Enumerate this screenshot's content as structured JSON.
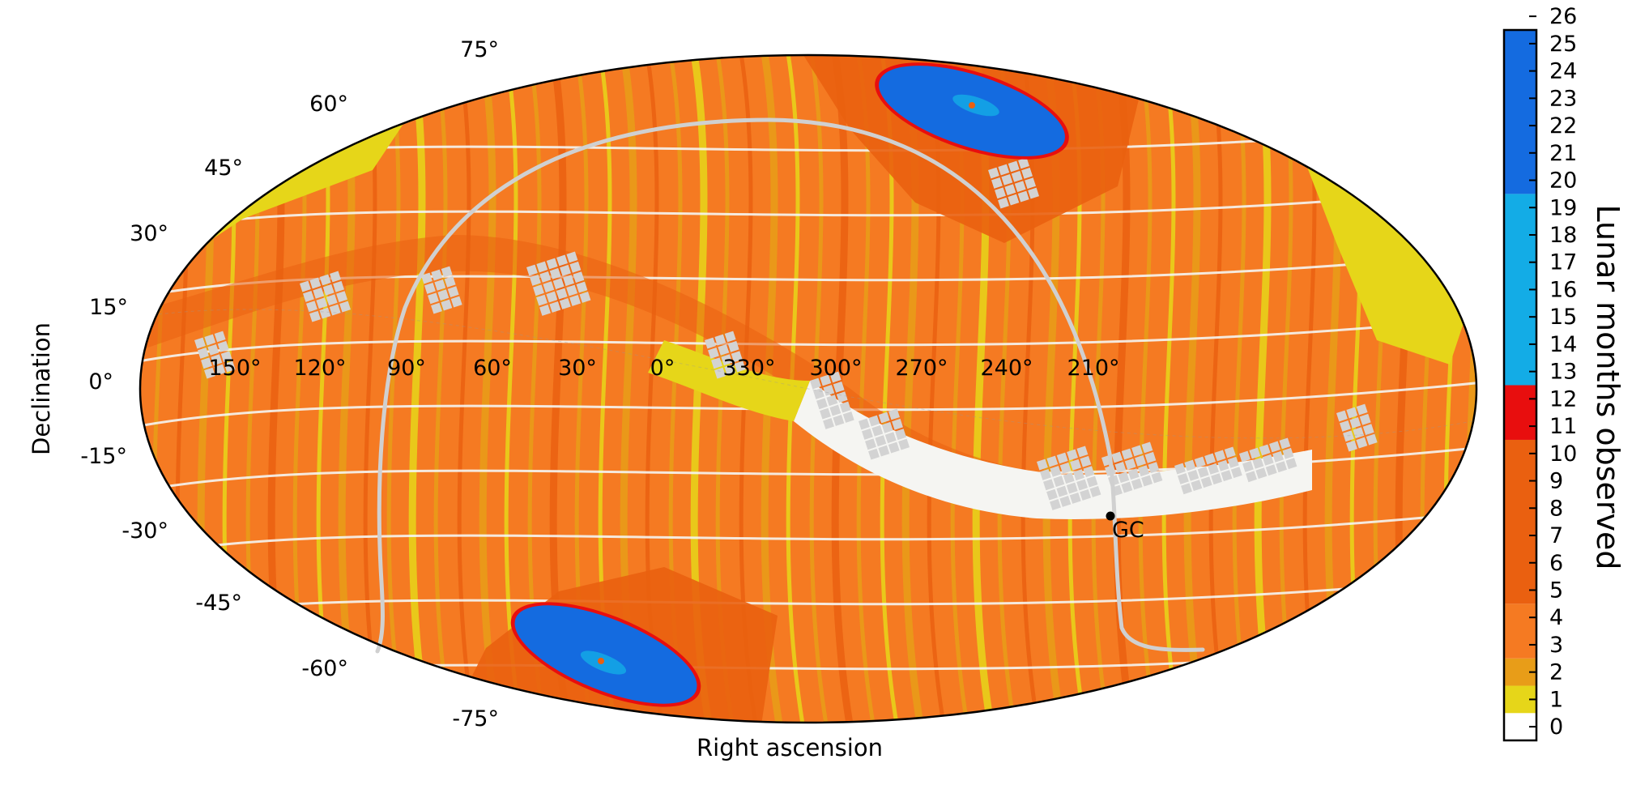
{
  "chart_data": {
    "type": "heatmap",
    "projection": "mollweide",
    "xlabel": "Right ascension",
    "ylabel": "Declination",
    "ra_ticks": [
      "150°",
      "120°",
      "90°",
      "60°",
      "30°",
      "0°",
      "330°",
      "300°",
      "270°",
      "240°",
      "210°"
    ],
    "dec_ticks": [
      "75°",
      "60°",
      "45°",
      "30°",
      "15°",
      "0°",
      "-15°",
      "-30°",
      "-45°",
      "-60°",
      "-75°"
    ],
    "annotation": "GC",
    "grid": true,
    "colorbar": {
      "label": "Lunar months observed",
      "ticks": [
        "0",
        "1",
        "2",
        "3",
        "4",
        "5",
        "6",
        "7",
        "8",
        "9",
        "10",
        "11",
        "12",
        "13",
        "14",
        "15",
        "16",
        "17",
        "18",
        "19",
        "20",
        "21",
        "22",
        "23",
        "24",
        "25",
        "26"
      ],
      "min": 0,
      "max": 26,
      "bands": [
        {
          "from": 0,
          "to": 1,
          "color": "#ffffff"
        },
        {
          "from": 1,
          "to": 2,
          "color": "#e6d619"
        },
        {
          "from": 2,
          "to": 3,
          "color": "#e89d18"
        },
        {
          "from": 3,
          "to": 5,
          "color": "#f57a22"
        },
        {
          "from": 5,
          "to": 11,
          "color": "#ea6010"
        },
        {
          "from": 11,
          "to": 13,
          "color": "#e80e0e"
        },
        {
          "from": 13,
          "to": 20,
          "color": "#13ace6"
        },
        {
          "from": 20,
          "to": 26,
          "color": "#146be0"
        }
      ]
    },
    "colors": {
      "low_coverage": "#e6d619",
      "mid_coverage": "#e89d18",
      "main_coverage": "#f57a22",
      "high_coverage": "#ea6010",
      "ecliptic_band": "#f5f5f2",
      "pole_light": "#13ace6",
      "pole_dark": "#146be0",
      "galactic_plane_line": "#d0d0d0",
      "masked_fields": "#d3d3d3"
    }
  }
}
